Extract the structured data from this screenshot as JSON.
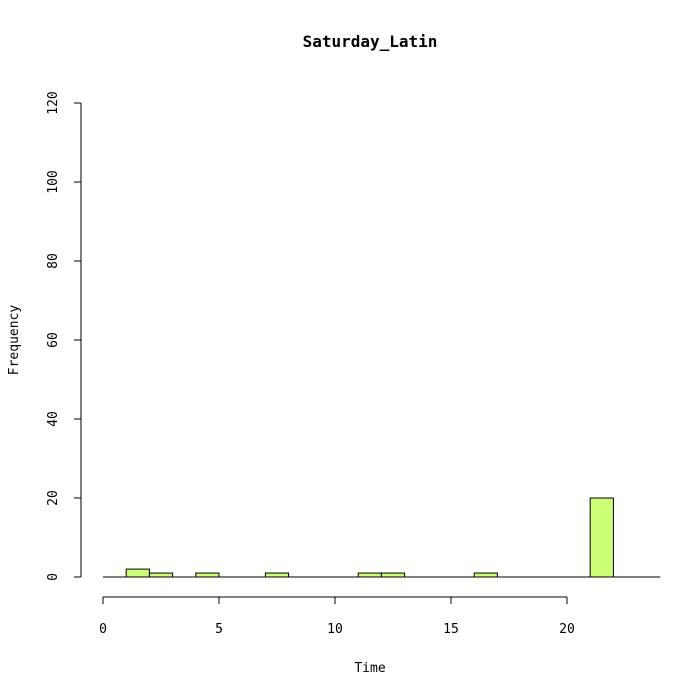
{
  "chart_data": {
    "type": "bar",
    "title": "Saturday_Latin",
    "xlabel": "Time",
    "ylabel": "Frequency",
    "bin_width": 1,
    "bins": [
      {
        "start": 1,
        "end": 2,
        "count": 2
      },
      {
        "start": 2,
        "end": 3,
        "count": 1
      },
      {
        "start": 4,
        "end": 5,
        "count": 1
      },
      {
        "start": 7,
        "end": 8,
        "count": 1
      },
      {
        "start": 11,
        "end": 12,
        "count": 1
      },
      {
        "start": 12,
        "end": 13,
        "count": 1
      },
      {
        "start": 16,
        "end": 17,
        "count": 1
      },
      {
        "start": 21,
        "end": 22,
        "count": 20
      }
    ],
    "xlim": [
      0,
      24
    ],
    "ylim": [
      0,
      120
    ],
    "x_ticks": [
      0,
      5,
      10,
      15,
      20
    ],
    "y_ticks": [
      0,
      20,
      40,
      60,
      80,
      100,
      120
    ],
    "bar_color": "#ccff77",
    "grid": false
  }
}
